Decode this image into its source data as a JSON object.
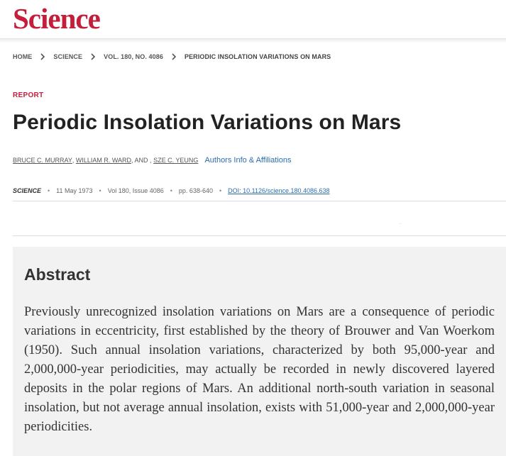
{
  "header": {
    "logo_text": "Science",
    "brand_color": "#c41e3a"
  },
  "breadcrumb": [
    {
      "label": "HOME"
    },
    {
      "label": "SCIENCE"
    },
    {
      "label": "VOL. 180, NO. 4086"
    },
    {
      "label": "PERIODIC INSOLATION VARIATIONS ON MARS"
    }
  ],
  "article": {
    "kicker": "REPORT",
    "title": "Periodic Insolation Variations on Mars",
    "authors": [
      "BRUCE C. MURRAY",
      "WILLIAM R. WARD",
      "SZE C. YEUNG"
    ],
    "author_sep_1": ",",
    "author_sep_2": ", AND ,",
    "affiliations_link": "Authors Info & Affiliations",
    "journal": "SCIENCE",
    "date": "11 May 1973",
    "volume_issue": "Vol 180, Issue 4086",
    "pages": "pp. 638-640",
    "doi": "DOI: 10.1126/science.180.4086.638",
    "tiny_mark": "."
  },
  "abstract": {
    "heading": "Abstract",
    "text": "Previously unrecognized insolation variations on Mars are a consequence of periodic variations in eccentricity, first established by the theory of Brouwer and Van Woerkom (1950). Such annual insolation variations, characterized by both 95,000-year and 2,000,000-year periodicities, may actually be recorded in newly discovered layered deposits in the polar regions of Mars. An additional north-south variation in seasonal insolation, but not average annual insolation, exists with 51,000-year and 2,000,000-year periodicities."
  },
  "colors": {
    "link": "#2b6cb0",
    "abstract_bg": "#f2f2f2"
  }
}
